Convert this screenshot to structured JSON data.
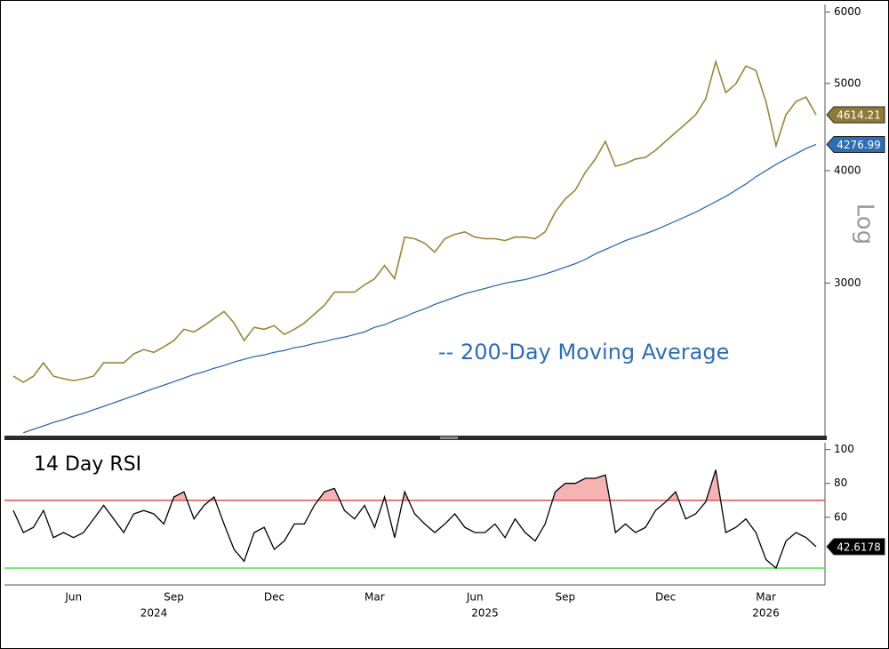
{
  "chart_data": [
    {
      "type": "line",
      "log_scale": true,
      "scale_label": "Log",
      "annotation": "-- 200-Day Moving Average",
      "ylim": [
        2030,
        6120
      ],
      "yticks": [
        3000,
        4000,
        5000,
        6000
      ],
      "series": [
        {
          "color": "#9c8538",
          "values": [
            2364,
            2327,
            2364,
            2446,
            2364,
            2348,
            2337,
            2348,
            2364,
            2446,
            2446,
            2446,
            2502,
            2530,
            2512,
            2548,
            2589,
            2665,
            2647,
            2690,
            2739,
            2789,
            2708,
            2589,
            2678,
            2665,
            2690,
            2630,
            2665,
            2708,
            2770,
            2834,
            2931,
            2931,
            2931,
            2986,
            3033,
            3138,
            3033,
            3374,
            3360,
            3321,
            3247,
            3360,
            3398,
            3420,
            3374,
            3360,
            3360,
            3344,
            3374,
            3374,
            3360,
            3420,
            3596,
            3720,
            3805,
            3982,
            4120,
            4311,
            4045,
            4073,
            4120,
            4138,
            4214,
            4311,
            4410,
            4510,
            4614,
            4806,
            5287,
            4883,
            4995,
            5227,
            5168,
            4774,
            4262,
            4614,
            4774,
            4828,
            4614.21
          ]
        },
        {
          "color": "#2f6db3",
          "values": [
            null,
            2045,
            2063,
            2081,
            2100,
            2115,
            2134,
            2149,
            2169,
            2188,
            2208,
            2228,
            2248,
            2269,
            2290,
            2310,
            2331,
            2352,
            2374,
            2391,
            2412,
            2429,
            2451,
            2468,
            2485,
            2496,
            2513,
            2524,
            2542,
            2553,
            2571,
            2582,
            2600,
            2612,
            2630,
            2647,
            2679,
            2696,
            2727,
            2752,
            2783,
            2808,
            2840,
            2866,
            2893,
            2919,
            2939,
            2958,
            2979,
            2999,
            3013,
            3026,
            3048,
            3069,
            3096,
            3124,
            3152,
            3187,
            3232,
            3269,
            3306,
            3344,
            3374,
            3405,
            3437,
            3475,
            3515,
            3555,
            3596,
            3645,
            3695,
            3745,
            3805,
            3866,
            3937,
            4000,
            4064,
            4120,
            4176,
            4233,
            4276.99
          ]
        }
      ]
    },
    {
      "type": "line",
      "title": "14 Day RSI",
      "categories": [
        null,
        null,
        null,
        null,
        null,
        null,
        "Jun",
        null,
        null,
        null,
        null,
        null,
        null,
        null,
        null,
        null,
        "Sep",
        null,
        null,
        null,
        null,
        null,
        null,
        null,
        null,
        null,
        "Dec",
        null,
        null,
        null,
        null,
        null,
        null,
        null,
        null,
        null,
        "Mar",
        null,
        null,
        null,
        null,
        null,
        null,
        null,
        null,
        null,
        "Jun",
        null,
        null,
        null,
        null,
        null,
        null,
        null,
        null,
        "Sep",
        null,
        null,
        null,
        null,
        null,
        null,
        null,
        null,
        null,
        "Dec",
        null,
        null,
        null,
        null,
        null,
        null,
        null,
        null,
        null,
        "Mar",
        null,
        null,
        null,
        null,
        null
      ],
      "category_groups": [
        null,
        null,
        null,
        null,
        null,
        null,
        null,
        null,
        null,
        null,
        null,
        null,
        null,
        null,
        "2024",
        null,
        null,
        null,
        null,
        null,
        null,
        null,
        null,
        null,
        null,
        null,
        null,
        null,
        null,
        null,
        null,
        null,
        null,
        null,
        null,
        null,
        null,
        null,
        null,
        null,
        null,
        null,
        null,
        null,
        null,
        null,
        null,
        "2025",
        null,
        null,
        null,
        null,
        null,
        null,
        null,
        null,
        null,
        null,
        null,
        null,
        null,
        null,
        null,
        null,
        null,
        null,
        null,
        null,
        null,
        null,
        null,
        null,
        null,
        null,
        null,
        "2026",
        null,
        null,
        null,
        null,
        null
      ],
      "ylim": [
        20,
        104
      ],
      "yticks": [
        60,
        80,
        100
      ],
      "thresholds": [
        {
          "value": 70,
          "color": "#e0524f",
          "fill": "#f6b3b3"
        },
        {
          "value": 30,
          "color": "#4ee04b"
        }
      ],
      "series": [
        {
          "color": "#000000",
          "values": [
            64,
            51,
            54,
            64,
            48,
            51,
            48,
            51,
            59,
            67,
            59,
            51,
            62,
            64,
            62,
            56,
            72,
            75,
            59,
            67,
            72,
            56,
            41,
            34,
            51,
            54,
            41,
            46,
            56,
            56,
            67,
            75,
            77,
            64,
            59,
            67,
            54,
            72,
            48,
            75,
            62,
            56,
            51,
            56,
            62,
            54,
            51,
            51,
            56,
            48,
            59,
            51,
            46,
            56,
            75,
            80,
            80,
            83,
            83,
            85,
            51,
            56,
            51,
            54,
            64,
            69,
            75,
            59,
            62,
            69,
            88,
            51,
            54,
            59,
            51,
            35,
            30,
            46,
            51,
            48,
            42.6178
          ]
        }
      ]
    }
  ]
}
